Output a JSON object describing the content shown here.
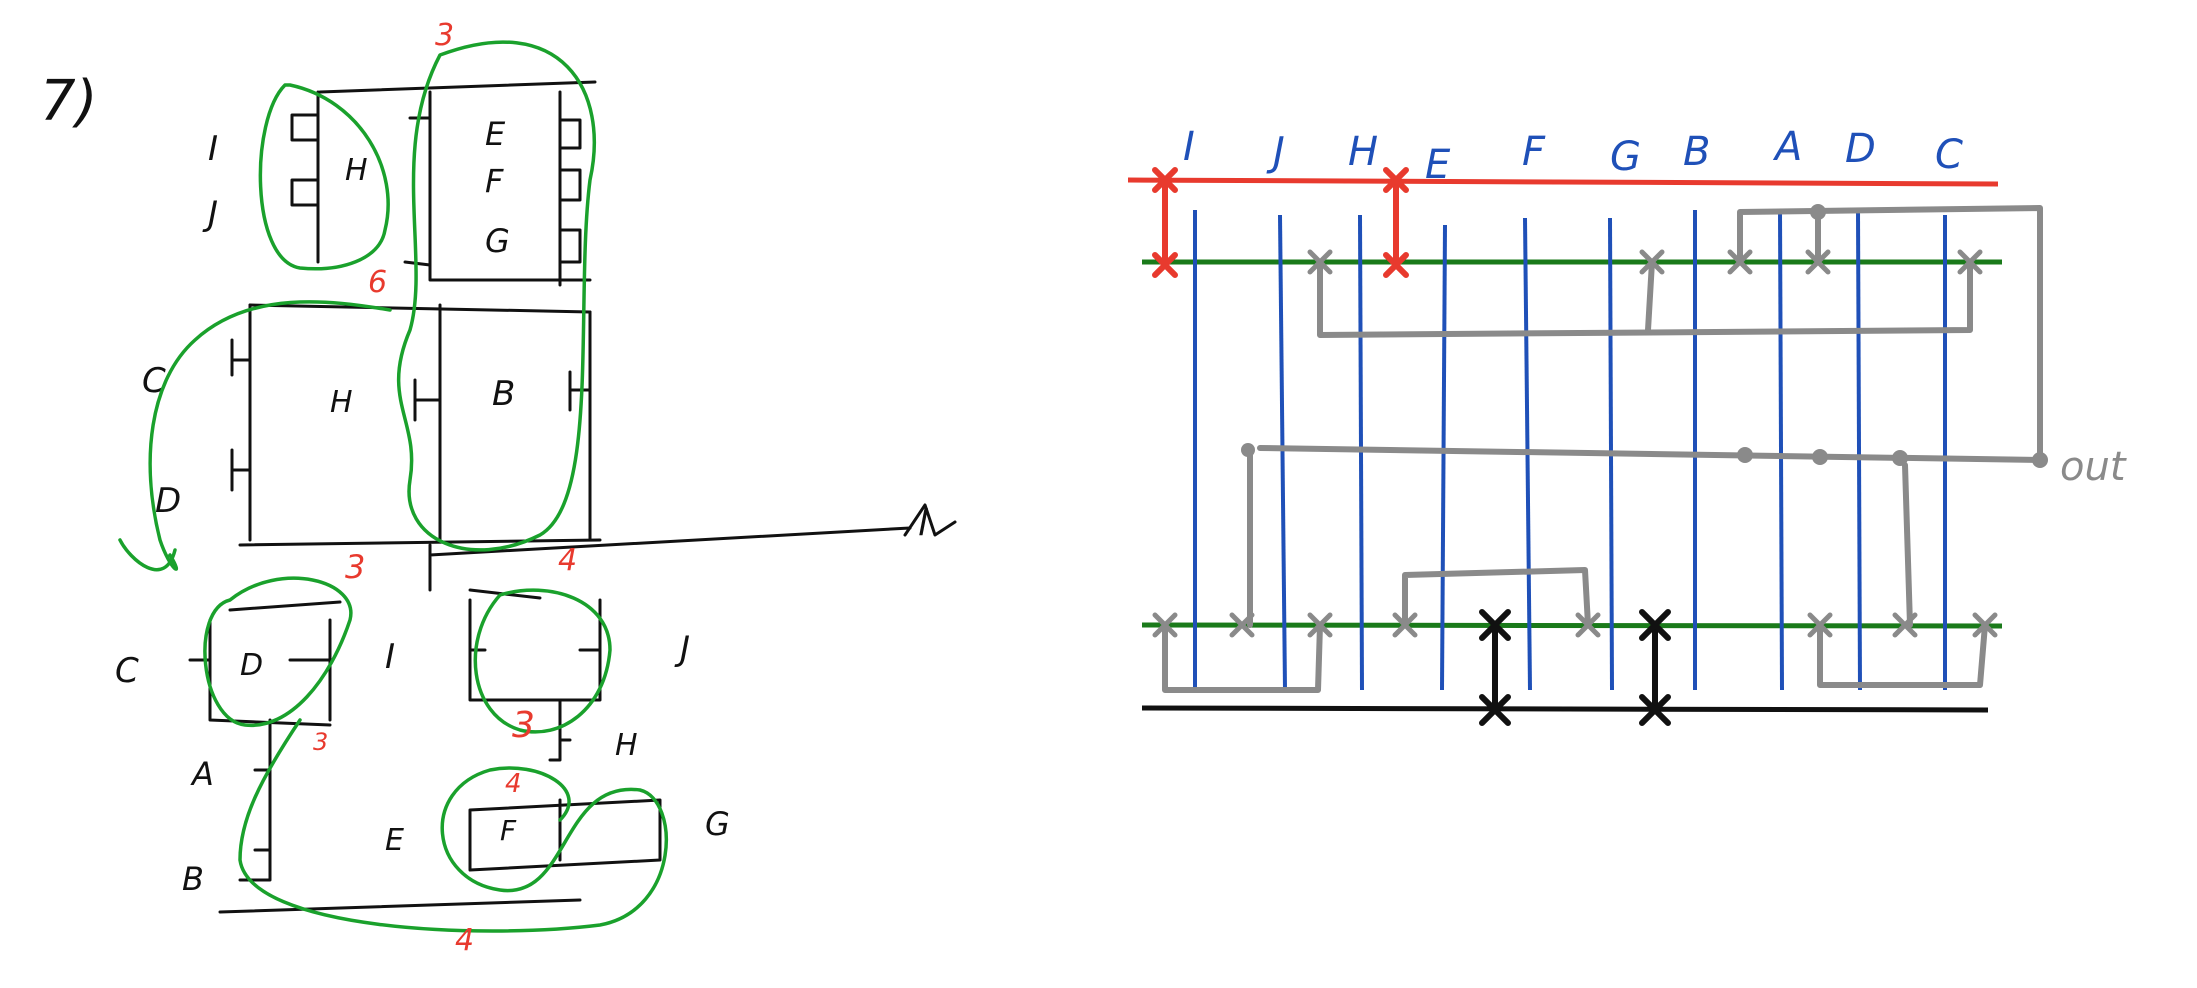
{
  "problem": {
    "number": "7)"
  },
  "colors": {
    "red": "#e83a2e",
    "green": "#1a7a1a",
    "blue": "#1f50b8",
    "gray": "#8a8a8a",
    "black": "#111111",
    "circle": "#1aa12c"
  },
  "pull_up": {
    "inputs": [
      "I",
      "J",
      "H",
      "E",
      "F",
      "G",
      "C",
      "D",
      "B"
    ],
    "output_mark": "H",
    "node_label": "l"
  },
  "pull_down": {
    "inputs": [
      "C",
      "D",
      "I",
      "J",
      "H",
      "A",
      "B",
      "E",
      "F",
      "G"
    ]
  },
  "group_labels": [
    "3",
    "6",
    "3",
    "4",
    "3",
    "3",
    "4",
    "4"
  ],
  "stick": {
    "columns": [
      "I",
      "J",
      "H",
      "E",
      "F",
      "G",
      "B",
      "A",
      "D",
      "C"
    ],
    "output_label": "out"
  }
}
